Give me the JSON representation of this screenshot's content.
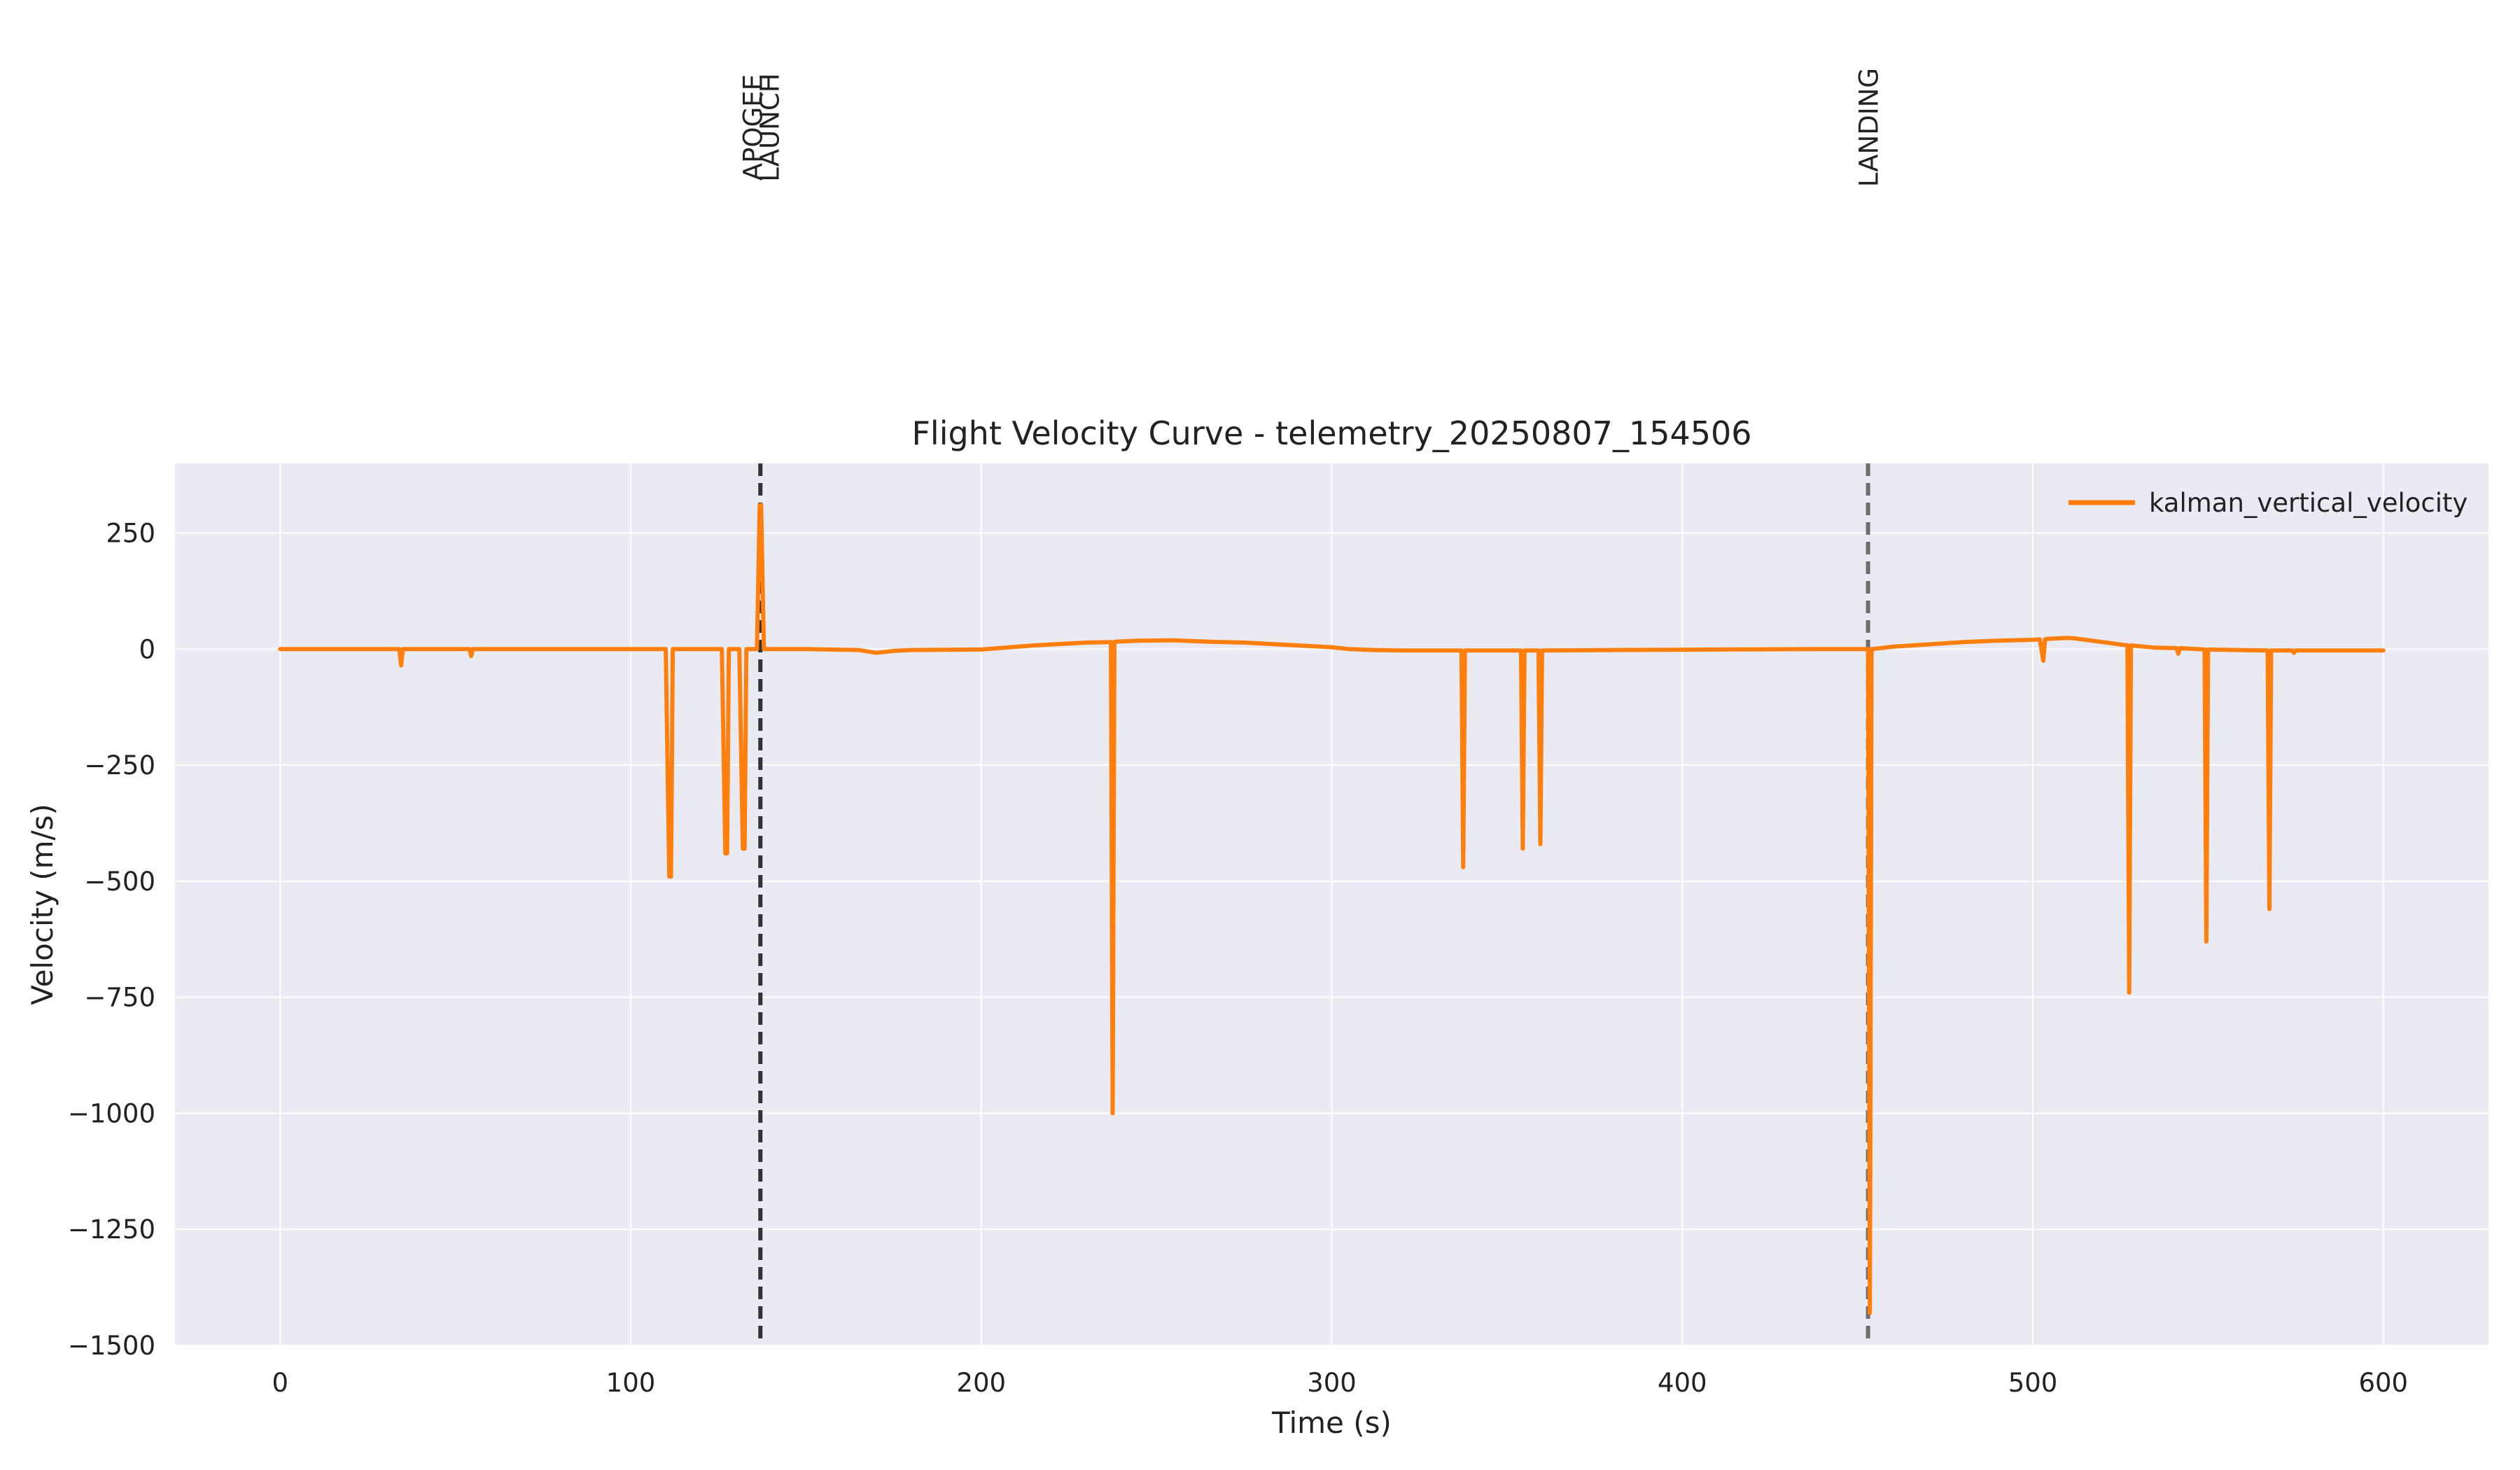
{
  "chart_data": {
    "type": "line",
    "title": "Flight Velocity Curve - telemetry_20250807_154506",
    "xlabel": "Time (s)",
    "ylabel": "Velocity (m/s)",
    "xlim": [
      -30,
      630
    ],
    "ylim": [
      -1500,
      400
    ],
    "x_ticks": [
      0,
      100,
      200,
      300,
      400,
      500,
      600
    ],
    "y_ticks": [
      250,
      0,
      -250,
      -500,
      -750,
      -1000,
      -1250,
      -1500
    ],
    "x_tick_labels": [
      "0",
      "100",
      "200",
      "300",
      "400",
      "500",
      "600"
    ],
    "y_tick_labels": [
      "250",
      "0",
      "−250",
      "−500",
      "−750",
      "−1000",
      "−1250",
      "−1500"
    ],
    "grid": true,
    "legend_position": "top-right",
    "background": "#eaeaf2",
    "series": [
      {
        "name": "kalman_vertical_velocity",
        "color": "#ff7f0e",
        "x": [
          0,
          34,
          34.5,
          35,
          54,
          54.5,
          55,
          110,
          111,
          111.5,
          112,
          126,
          127,
          127.5,
          128,
          131,
          132,
          132.5,
          133,
          136,
          136.8,
          137.2,
          138,
          150,
          165,
          170,
          175,
          180,
          200,
          215,
          230,
          237,
          237.5,
          238,
          245,
          255,
          265,
          275,
          285,
          300,
          305,
          312,
          320,
          337,
          337.5,
          338,
          345,
          354,
          354.5,
          355,
          359,
          359.5,
          360,
          380,
          410,
          440,
          452,
          453,
          453.5,
          454,
          460,
          470,
          480,
          490,
          500,
          502,
          503,
          503.5,
          504,
          510,
          512,
          520,
          527,
          527.5,
          528,
          535,
          541,
          541.5,
          542,
          549,
          549.5,
          550,
          558,
          567,
          567.5,
          568,
          574,
          574.5,
          575,
          600
        ],
        "y": [
          0,
          0,
          -35,
          0,
          0,
          -15,
          0,
          0,
          -490,
          -490,
          0,
          0,
          -440,
          -440,
          0,
          0,
          -430,
          -430,
          0,
          0,
          310,
          310,
          0,
          0,
          -2,
          -8,
          -4,
          -2,
          -1,
          8,
          14,
          15,
          -1000,
          16,
          18,
          19,
          16,
          14,
          10,
          4,
          0,
          -2,
          -3,
          -3,
          -470,
          -3,
          -3,
          -3,
          -430,
          -3,
          -3,
          -420,
          -3,
          -2,
          -1,
          0,
          0,
          0,
          -1430,
          0,
          5,
          10,
          15,
          18,
          20,
          21,
          -25,
          21,
          22,
          24,
          23,
          15,
          8,
          -740,
          8,
          3,
          2,
          -10,
          2,
          -1,
          -630,
          -1,
          -2,
          -3,
          -560,
          -3,
          -3,
          -8,
          -3,
          -3
        ]
      }
    ],
    "events": [
      {
        "x": 137,
        "labels": [
          "APOGEE",
          "LAUNCH"
        ],
        "color": "#333333"
      },
      {
        "x": 453,
        "labels": [
          "LANDING"
        ],
        "color": "#6e6e6e"
      }
    ]
  }
}
